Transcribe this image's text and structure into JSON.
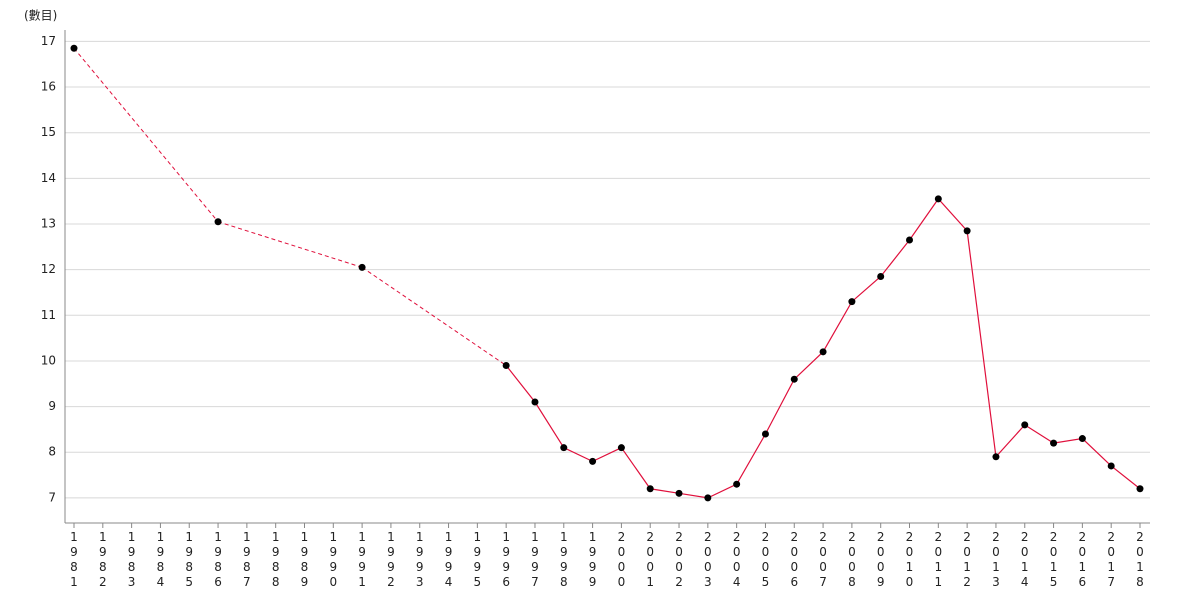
{
  "chart_data": {
    "type": "line",
    "y_label": "(數目)",
    "categories": [
      "1981",
      "1982",
      "1983",
      "1984",
      "1985",
      "1986",
      "1987",
      "1988",
      "1989",
      "1990",
      "1991",
      "1992",
      "1993",
      "1994",
      "1995",
      "1996",
      "1997",
      "1998",
      "1999",
      "2000",
      "2001",
      "2002",
      "2003",
      "2004",
      "2005",
      "2006",
      "2007",
      "2008",
      "2009",
      "2010",
      "2011",
      "2012",
      "2013",
      "2014",
      "2015",
      "2016",
      "2017",
      "2018"
    ],
    "series": [
      {
        "color": "#e0103c",
        "marker_color": "#000000",
        "values": [
          16.85,
          null,
          null,
          null,
          null,
          13.05,
          null,
          null,
          null,
          null,
          12.05,
          null,
          null,
          null,
          null,
          9.9,
          9.1,
          8.1,
          7.8,
          8.1,
          7.2,
          7.1,
          7.0,
          7.3,
          8.4,
          9.6,
          10.2,
          11.3,
          11.85,
          12.65,
          13.55,
          12.85,
          7.9,
          8.6,
          8.2,
          8.3,
          7.7,
          7.2
        ]
      }
    ],
    "ylim": [
      6.45,
      17.25
    ],
    "yticks": [
      7,
      8,
      9,
      10,
      11,
      12,
      13,
      14,
      15,
      16,
      17
    ],
    "grid": true
  }
}
